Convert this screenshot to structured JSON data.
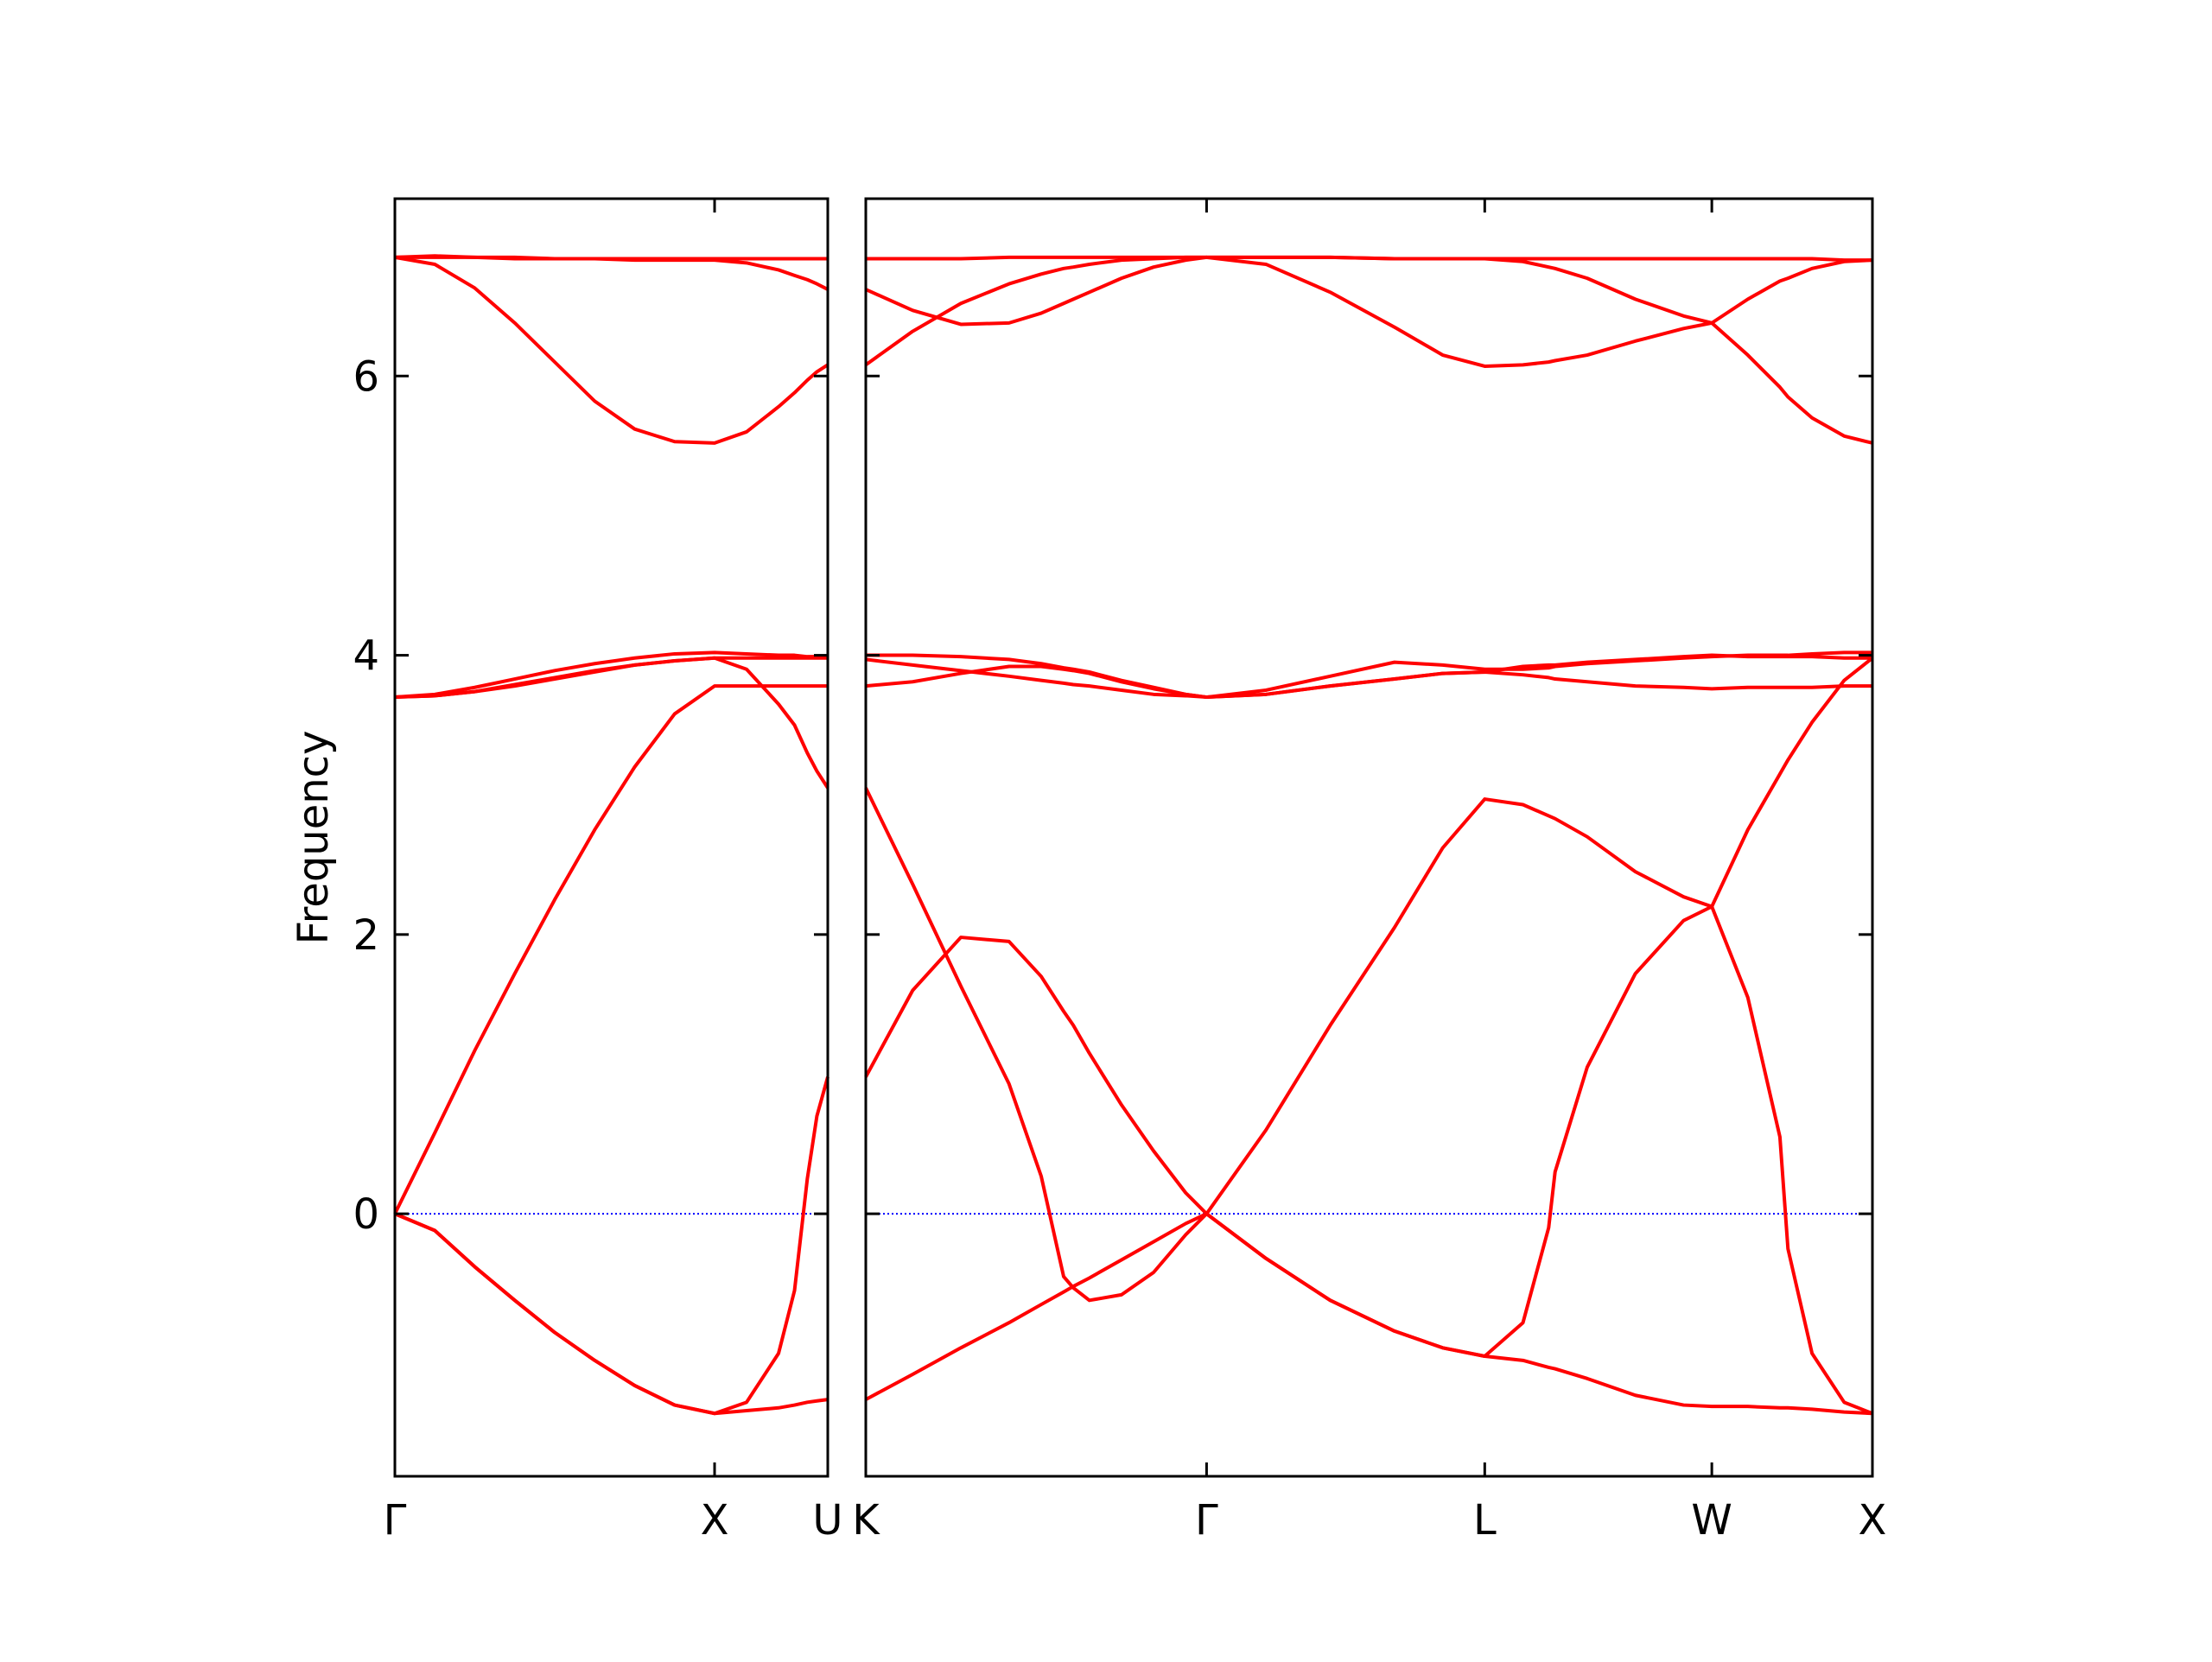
{
  "chart_data": [
    {
      "type": "line",
      "ylabel": "Frequency",
      "color": "#ff0000",
      "line_color_zero": "#0000ff",
      "hline": 0,
      "x": [
        0,
        0.125,
        0.25,
        0.375,
        0.5,
        0.625,
        0.75,
        0.875,
        1,
        1.1,
        1.2,
        1.25,
        1.29,
        1.32,
        1.354
      ],
      "series": [
        {
          "values": [
            0,
            -0.12,
            -0.38,
            -0.62,
            -0.85,
            -1.05,
            -1.23,
            -1.37,
            -1.43,
            -1.41,
            -1.39,
            -1.37,
            -1.35,
            -1.34,
            -1.33
          ]
        },
        {
          "values": [
            0,
            -0.12,
            -0.38,
            -0.62,
            -0.85,
            -1.05,
            -1.23,
            -1.37,
            -1.43,
            -1.35,
            -1.0,
            -0.55,
            0.25,
            0.7,
            0.98
          ]
        },
        {
          "values": [
            0,
            0.58,
            1.17,
            1.72,
            2.25,
            2.75,
            3.2,
            3.58,
            3.78,
            3.78,
            3.78,
            3.78,
            3.78,
            3.78,
            3.78
          ]
        },
        {
          "values": [
            3.7,
            3.71,
            3.74,
            3.78,
            3.83,
            3.88,
            3.93,
            3.96,
            3.98,
            3.9,
            3.65,
            3.5,
            3.3,
            3.17,
            3.05
          ]
        },
        {
          "values": [
            3.7,
            3.72,
            3.77,
            3.83,
            3.89,
            3.94,
            3.98,
            4.01,
            4.02,
            4.01,
            4.0,
            4.0,
            3.99,
            3.99,
            3.99
          ]
        },
        {
          "values": [
            3.7,
            3.71,
            3.74,
            3.79,
            3.84,
            3.89,
            3.93,
            3.96,
            3.98,
            3.98,
            3.98,
            3.98,
            3.98,
            3.98,
            3.98
          ]
        },
        {
          "values": [
            6.85,
            6.8,
            6.63,
            6.38,
            6.1,
            5.82,
            5.62,
            5.53,
            5.52,
            5.6,
            5.78,
            5.88,
            5.97,
            6.03,
            6.08
          ]
        },
        {
          "values": [
            6.85,
            6.85,
            6.85,
            6.84,
            6.84,
            6.84,
            6.83,
            6.83,
            6.83,
            6.81,
            6.76,
            6.72,
            6.69,
            6.66,
            6.62
          ]
        },
        {
          "values": [
            6.85,
            6.86,
            6.85,
            6.85,
            6.84,
            6.84,
            6.84,
            6.84,
            6.84,
            6.84,
            6.84,
            6.84,
            6.84,
            6.84,
            6.84
          ]
        }
      ],
      "xlim": [
        0,
        1.354
      ],
      "xticks": [
        {
          "value": 0,
          "label": "Γ"
        },
        {
          "value": 1,
          "label": "X"
        },
        {
          "value": 1.354,
          "label": "U"
        }
      ],
      "ylim": [
        -1.88,
        7.27
      ],
      "yticks": [
        0,
        2,
        4,
        6
      ],
      "show_ytick_labels": true,
      "grid": false
    },
    {
      "type": "line",
      "color": "#ff0000",
      "line_color_zero": "#0000ff",
      "hline": 0,
      "x": [
        1.354,
        1.5,
        1.65,
        1.8,
        1.9,
        1.97,
        2.0,
        2.05,
        2.15,
        2.25,
        2.35,
        2.415,
        2.6,
        2.8,
        3.0,
        3.15,
        3.281,
        3.4,
        3.48,
        3.5,
        3.6,
        3.75,
        3.9,
        3.988,
        4.1,
        4.2,
        4.225,
        4.3,
        4.4,
        4.488
      ],
      "series": [
        {
          "values": [
            -1.33,
            -1.15,
            -0.96,
            -0.78,
            -0.65,
            -0.56,
            -0.52,
            -0.46,
            -0.33,
            -0.2,
            -0.07,
            0,
            -0.32,
            -0.62,
            -0.84,
            -0.96,
            -1.02,
            -1.05,
            -1.1,
            -1.11,
            -1.18,
            -1.3,
            -1.37,
            -1.38,
            -1.38,
            -1.39,
            -1.39,
            -1.4,
            -1.42,
            -1.43
          ]
        },
        {
          "values": [
            3.05,
            2.36,
            1.63,
            0.93,
            0.27,
            -0.45,
            -0.53,
            -0.62,
            -0.58,
            -0.42,
            -0.15,
            0,
            -0.32,
            -0.62,
            -0.84,
            -0.96,
            -1.02,
            -0.78,
            -0.1,
            0.3,
            1.05,
            1.72,
            2.1,
            2.2,
            1.55,
            0.55,
            -0.25,
            -1.0,
            -1.35,
            -1.43
          ]
        },
        {
          "values": [
            0.98,
            1.6,
            1.98,
            1.95,
            1.7,
            1.45,
            1.35,
            1.15,
            0.78,
            0.45,
            0.15,
            0,
            0.6,
            1.35,
            2.05,
            2.62,
            2.97,
            2.93,
            2.85,
            2.83,
            2.7,
            2.45,
            2.27,
            2.2,
            2.75,
            3.15,
            3.25,
            3.52,
            3.82,
            3.98
          ]
        },
        {
          "values": [
            3.78,
            3.81,
            3.87,
            3.92,
            3.92,
            3.9,
            3.89,
            3.87,
            3.81,
            3.76,
            3.72,
            3.7,
            3.72,
            3.78,
            3.83,
            3.87,
            3.88,
            3.86,
            3.84,
            3.83,
            3.81,
            3.78,
            3.77,
            3.76,
            3.77,
            3.77,
            3.77,
            3.77,
            3.78,
            3.78
          ]
        },
        {
          "values": [
            4.0,
            4.0,
            3.99,
            3.97,
            3.94,
            3.91,
            3.9,
            3.88,
            3.82,
            3.77,
            3.72,
            3.7,
            3.75,
            3.85,
            3.95,
            3.93,
            3.9,
            3.9,
            3.91,
            3.92,
            3.94,
            3.96,
            3.98,
            3.99,
            4.0,
            4.0,
            4.0,
            4.01,
            4.02,
            4.02
          ]
        },
        {
          "values": [
            3.97,
            3.93,
            3.89,
            3.85,
            3.82,
            3.8,
            3.79,
            3.78,
            3.75,
            3.72,
            3.71,
            3.7,
            3.72,
            3.78,
            3.83,
            3.87,
            3.88,
            3.92,
            3.93,
            3.93,
            3.95,
            3.97,
            3.99,
            4.0,
            3.99,
            3.99,
            3.99,
            3.99,
            3.98,
            3.98
          ]
        },
        {
          "values": [
            6.08,
            6.32,
            6.52,
            6.66,
            6.73,
            6.77,
            6.78,
            6.8,
            6.83,
            6.84,
            6.85,
            6.85,
            6.8,
            6.6,
            6.35,
            6.15,
            6.07,
            6.08,
            6.1,
            6.11,
            6.15,
            6.25,
            6.34,
            6.38,
            6.15,
            5.92,
            5.85,
            5.7,
            5.57,
            5.52
          ]
        },
        {
          "values": [
            6.62,
            6.47,
            6.37,
            6.38,
            6.45,
            6.52,
            6.55,
            6.6,
            6.7,
            6.78,
            6.83,
            6.85,
            6.85,
            6.85,
            6.84,
            6.84,
            6.84,
            6.82,
            6.78,
            6.77,
            6.7,
            6.55,
            6.43,
            6.38,
            6.55,
            6.68,
            6.7,
            6.77,
            6.82,
            6.83
          ]
        },
        {
          "values": [
            6.84,
            6.84,
            6.84,
            6.85,
            6.85,
            6.85,
            6.85,
            6.85,
            6.85,
            6.85,
            6.85,
            6.85,
            6.85,
            6.85,
            6.84,
            6.84,
            6.84,
            6.84,
            6.84,
            6.84,
            6.84,
            6.84,
            6.84,
            6.84,
            6.84,
            6.84,
            6.84,
            6.84,
            6.83,
            6.83
          ]
        }
      ],
      "xlim": [
        1.354,
        4.488
      ],
      "xticks": [
        {
          "value": 1.354,
          "label": "K"
        },
        {
          "value": 2.415,
          "label": "Γ"
        },
        {
          "value": 3.281,
          "label": "L"
        },
        {
          "value": 3.988,
          "label": "W"
        },
        {
          "value": 4.488,
          "label": "X"
        }
      ],
      "ylim": [
        -1.88,
        7.27
      ],
      "yticks": [
        0,
        2,
        4,
        6
      ],
      "show_ytick_labels": false,
      "grid": false
    }
  ]
}
